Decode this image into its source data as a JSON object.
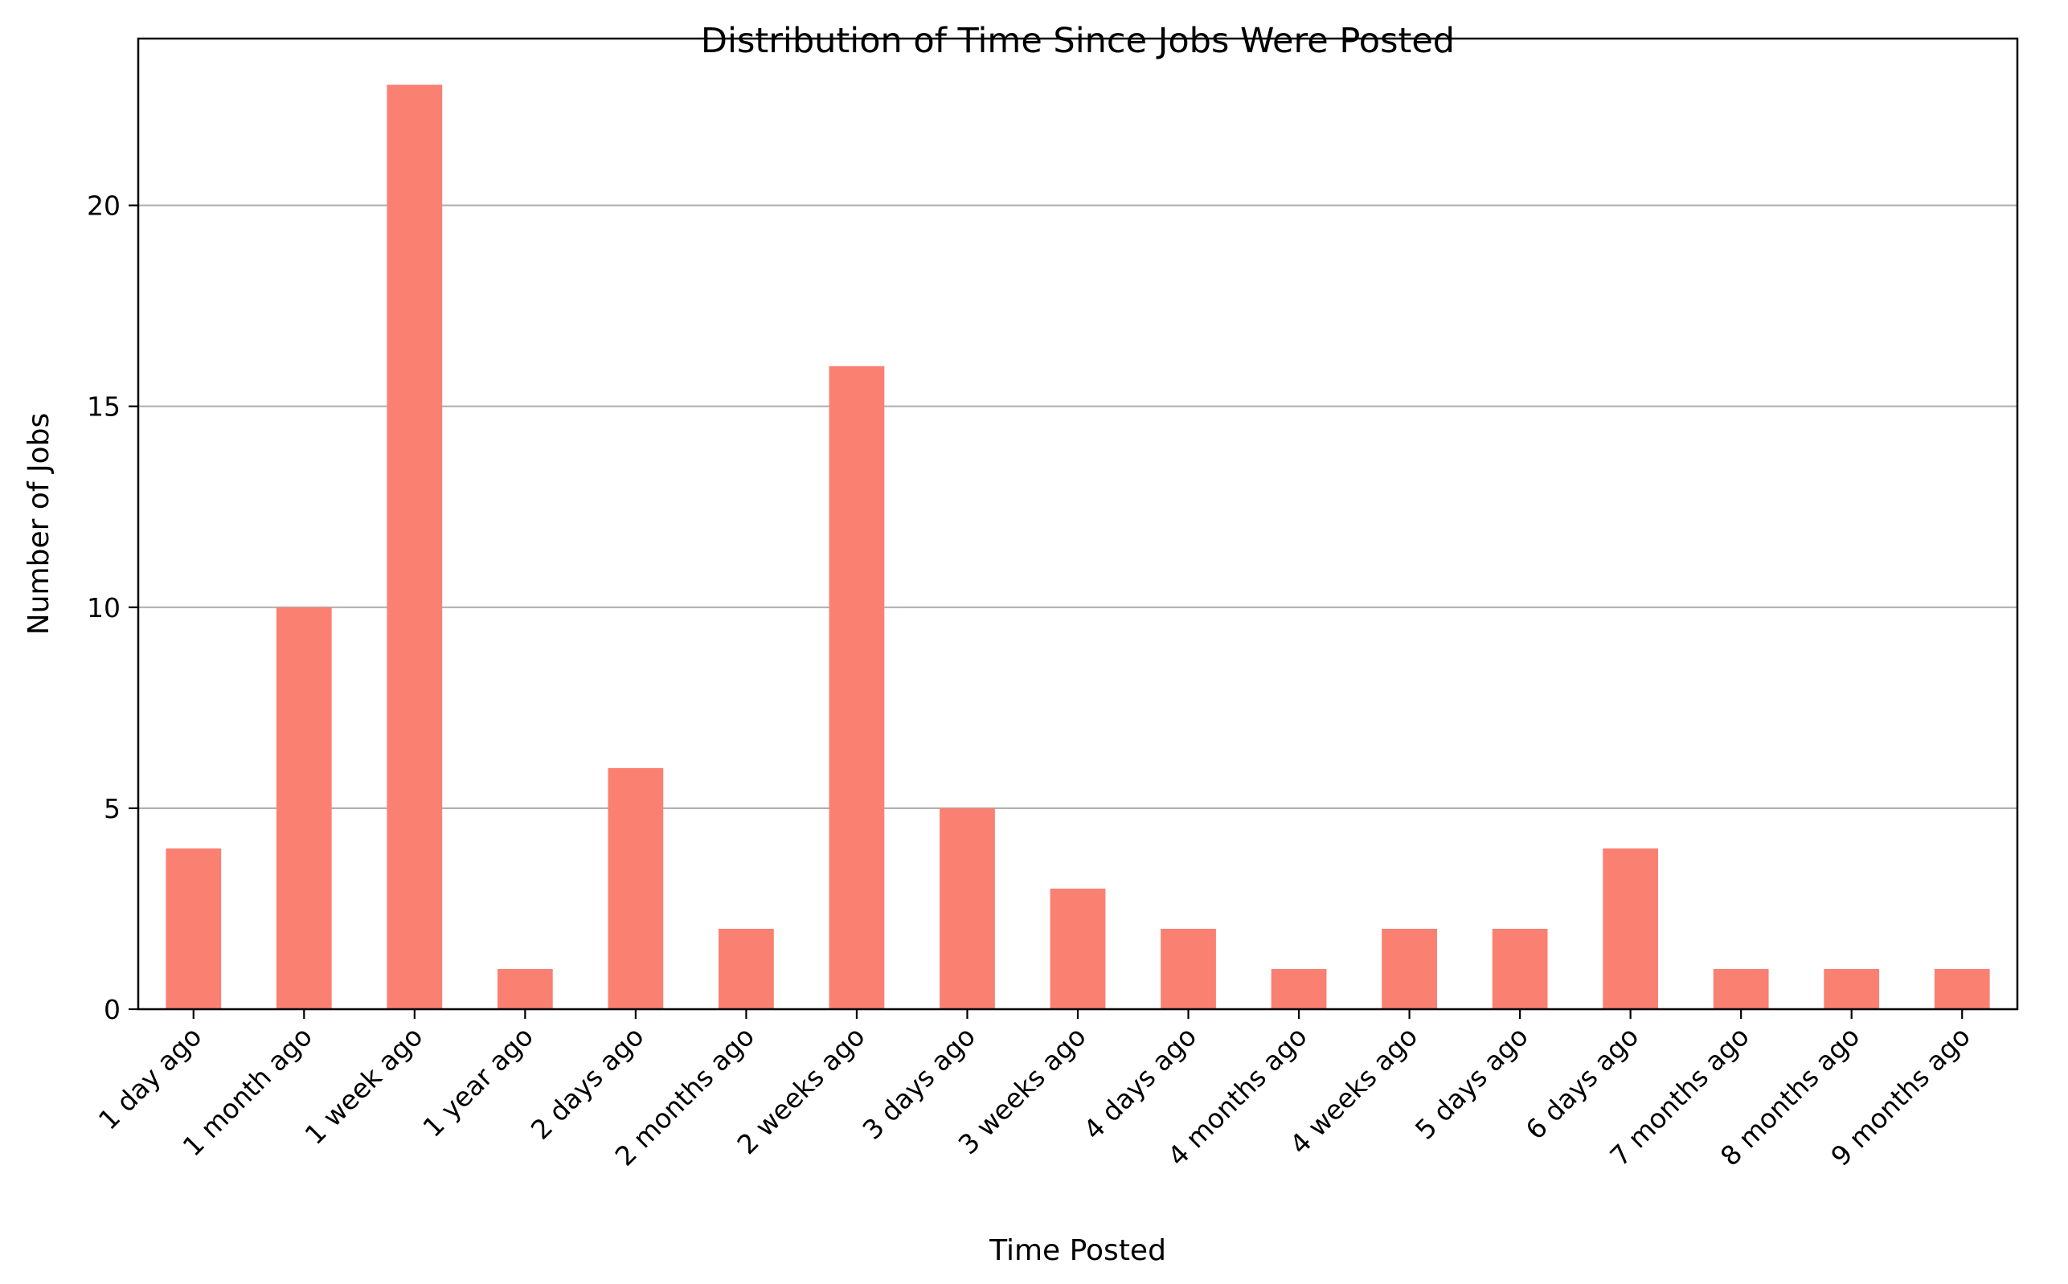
{
  "chart_data": {
    "type": "bar",
    "title": "Distribution of Time Since Jobs Were Posted",
    "xlabel": "Time Posted",
    "ylabel": "Number of Jobs",
    "categories": [
      "1 day ago",
      "1 month ago",
      "1 week ago",
      "1 year ago",
      "2 days ago",
      "2 months ago",
      "2 weeks ago",
      "3 days ago",
      "3 weeks ago",
      "4 days ago",
      "4 months ago",
      "4 weeks ago",
      "5 days ago",
      "6 days ago",
      "7 months ago",
      "8 months ago",
      "9 months ago"
    ],
    "values": [
      4,
      10,
      23,
      1,
      6,
      2,
      16,
      5,
      3,
      2,
      1,
      2,
      2,
      4,
      1,
      1,
      1
    ],
    "ylim": [
      0,
      24.15
    ],
    "yticks": [
      0,
      5,
      10,
      15,
      20
    ],
    "grid": "y",
    "colors": {
      "bar": "#fa8072",
      "grid": "#b0b0b0",
      "axis": "#000000"
    }
  }
}
